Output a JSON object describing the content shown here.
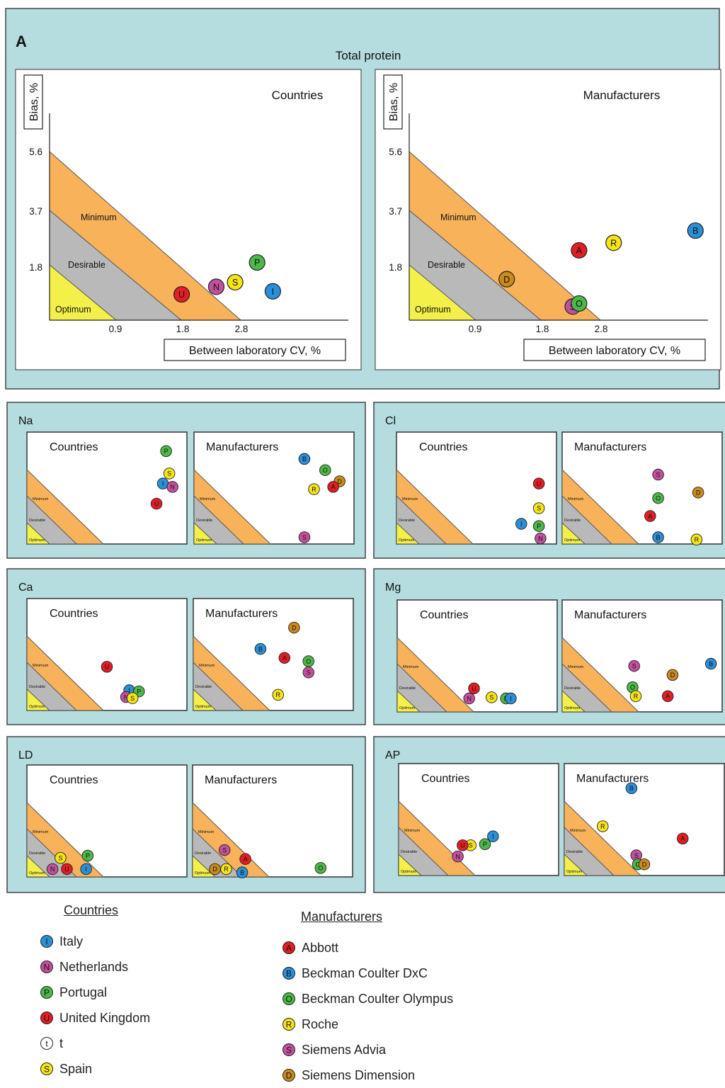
{
  "panel_a": {
    "letter": "A",
    "title": "Total protein",
    "ylabel": "Bias, %",
    "xlabel": "Between laboratory CV, %",
    "y_ticks": [
      "5.6",
      "3.7",
      "1.8"
    ],
    "x_ticks": [
      "0.9",
      "1.8",
      "2.8"
    ],
    "zones": [
      "Minimum",
      "Desirable",
      "Optimum"
    ]
  },
  "small_panels": {
    "sub_titles": [
      "Countries",
      "Manufacturers"
    ],
    "zones": [
      "Minimum",
      "Desirable",
      "Optimum"
    ]
  },
  "legend": {
    "countries_title": "Countries",
    "manufacturers_title": "Manufacturers",
    "countries": [
      {
        "code": "I",
        "name": "Italy",
        "color": "#2a8fd6"
      },
      {
        "code": "N",
        "name": "Netherlands",
        "color": "#c2509e"
      },
      {
        "code": "P",
        "name": "Portugal",
        "color": "#4db848"
      },
      {
        "code": "U",
        "name": "United Kingdom",
        "color": "#e21d24"
      },
      {
        "code": "t",
        "name": "t",
        "color": "#ffffff"
      },
      {
        "code": "S",
        "name": "Spain",
        "color": "#f5e516"
      }
    ],
    "manufacturers": [
      {
        "code": "A",
        "name": "Abbott",
        "color": "#e21d24"
      },
      {
        "code": "B",
        "name": "Beckman Coulter DxC",
        "color": "#2a8fd6"
      },
      {
        "code": "O",
        "name": "Beckman Coulter Olympus",
        "color": "#4db848"
      },
      {
        "code": "R",
        "name": "Roche",
        "color": "#f5e516"
      },
      {
        "code": "S",
        "name": "Siemens Advia",
        "color": "#c2509e"
      },
      {
        "code": "D",
        "name": "Siemens Dimension",
        "color": "#c98a1e"
      }
    ]
  },
  "colors": {
    "panel_bg": "#b5dcdf",
    "minimum_zone": "#f8b25a",
    "desirable_zone": "#b9b9b9",
    "optimum_zone": "#f4f04a"
  },
  "chart_data": [
    {
      "type": "scatter",
      "analyte": "Total protein",
      "group": "Countries",
      "xlabel": "Between laboratory CV, %",
      "ylabel": "Bias, %",
      "x_ticks": [
        0.9,
        1.8,
        2.8
      ],
      "y_ticks": [
        1.8,
        3.7,
        5.6
      ],
      "xlim": [
        0,
        5.2
      ],
      "ylim": [
        0,
        7.7
      ],
      "points": [
        {
          "label": "U",
          "x": 2.1,
          "y": 0.85
        },
        {
          "label": "N",
          "x": 2.65,
          "y": 1.1
        },
        {
          "label": "S",
          "x": 2.95,
          "y": 1.25
        },
        {
          "label": "P",
          "x": 3.3,
          "y": 1.9
        },
        {
          "label": "I",
          "x": 3.55,
          "y": 0.95
        }
      ]
    },
    {
      "type": "scatter",
      "analyte": "Total protein",
      "group": "Manufacturers",
      "xlabel": "Between laboratory CV, %",
      "ylabel": "Bias, %",
      "x_ticks": [
        0.9,
        1.8,
        2.8
      ],
      "y_ticks": [
        1.8,
        3.7,
        5.6
      ],
      "xlim": [
        0,
        5.2
      ],
      "ylim": [
        0,
        7.7
      ],
      "points": [
        {
          "label": "D",
          "x": 1.55,
          "y": 1.35
        },
        {
          "label": "S",
          "x": 2.6,
          "y": 0.45
        },
        {
          "label": "O",
          "x": 2.7,
          "y": 0.55
        },
        {
          "label": "A",
          "x": 2.7,
          "y": 2.3
        },
        {
          "label": "R",
          "x": 3.25,
          "y": 2.55
        },
        {
          "label": "B",
          "x": 4.55,
          "y": 2.95
        }
      ]
    },
    {
      "type": "scatter",
      "analyte": "Na",
      "group": "Countries",
      "points": [
        {
          "label": "P",
          "x": 0.87,
          "y": 0.83
        },
        {
          "label": "S",
          "x": 0.89,
          "y": 0.63
        },
        {
          "label": "I",
          "x": 0.85,
          "y": 0.54
        },
        {
          "label": "N",
          "x": 0.91,
          "y": 0.51
        },
        {
          "label": "U",
          "x": 0.81,
          "y": 0.36
        }
      ]
    },
    {
      "type": "scatter",
      "analyte": "Na",
      "group": "Manufacturers",
      "points": [
        {
          "label": "B",
          "x": 0.69,
          "y": 0.76
        },
        {
          "label": "O",
          "x": 0.82,
          "y": 0.66
        },
        {
          "label": "R",
          "x": 0.75,
          "y": 0.49
        },
        {
          "label": "D",
          "x": 0.91,
          "y": 0.56
        },
        {
          "label": "A",
          "x": 0.87,
          "y": 0.51
        },
        {
          "label": "S",
          "x": 0.69,
          "y": 0.06
        }
      ]
    },
    {
      "type": "scatter",
      "analyte": "Cl",
      "group": "Countries",
      "points": [
        {
          "label": "U",
          "x": 0.89,
          "y": 0.54
        },
        {
          "label": "S",
          "x": 0.89,
          "y": 0.32
        },
        {
          "label": "I",
          "x": 0.78,
          "y": 0.18
        },
        {
          "label": "P",
          "x": 0.89,
          "y": 0.16
        },
        {
          "label": "N",
          "x": 0.9,
          "y": 0.05
        }
      ]
    },
    {
      "type": "scatter",
      "analyte": "Cl",
      "group": "Manufacturers",
      "points": [
        {
          "label": "S",
          "x": 0.6,
          "y": 0.62
        },
        {
          "label": "D",
          "x": 0.85,
          "y": 0.46
        },
        {
          "label": "O",
          "x": 0.6,
          "y": 0.41
        },
        {
          "label": "A",
          "x": 0.55,
          "y": 0.25
        },
        {
          "label": "B",
          "x": 0.6,
          "y": 0.06
        },
        {
          "label": "R",
          "x": 0.84,
          "y": 0.04
        }
      ]
    },
    {
      "type": "scatter",
      "analyte": "Ca",
      "group": "Countries",
      "points": [
        {
          "label": "U",
          "x": 0.5,
          "y": 0.39
        },
        {
          "label": "I",
          "x": 0.64,
          "y": 0.18
        },
        {
          "label": "P",
          "x": 0.7,
          "y": 0.17
        },
        {
          "label": "N",
          "x": 0.62,
          "y": 0.12
        },
        {
          "label": "S",
          "x": 0.66,
          "y": 0.11
        }
      ]
    },
    {
      "type": "scatter",
      "analyte": "Ca",
      "group": "Manufacturers",
      "points": [
        {
          "label": "D",
          "x": 0.63,
          "y": 0.74
        },
        {
          "label": "B",
          "x": 0.42,
          "y": 0.55
        },
        {
          "label": "A",
          "x": 0.57,
          "y": 0.47
        },
        {
          "label": "O",
          "x": 0.72,
          "y": 0.44
        },
        {
          "label": "S",
          "x": 0.72,
          "y": 0.34
        },
        {
          "label": "R",
          "x": 0.53,
          "y": 0.14
        }
      ]
    },
    {
      "type": "scatter",
      "analyte": "Mg",
      "group": "Countries",
      "points": [
        {
          "label": "U",
          "x": 0.48,
          "y": 0.21
        },
        {
          "label": "N",
          "x": 0.45,
          "y": 0.12
        },
        {
          "label": "S",
          "x": 0.59,
          "y": 0.13
        },
        {
          "label": "P",
          "x": 0.68,
          "y": 0.12
        },
        {
          "label": "I",
          "x": 0.71,
          "y": 0.12
        }
      ]
    },
    {
      "type": "scatter",
      "analyte": "Mg",
      "group": "Manufacturers",
      "points": [
        {
          "label": "B",
          "x": 0.93,
          "y": 0.43
        },
        {
          "label": "S",
          "x": 0.45,
          "y": 0.41
        },
        {
          "label": "D",
          "x": 0.69,
          "y": 0.33
        },
        {
          "label": "O",
          "x": 0.44,
          "y": 0.22
        },
        {
          "label": "R",
          "x": 0.46,
          "y": 0.14
        },
        {
          "label": "A",
          "x": 0.66,
          "y": 0.14
        }
      ]
    },
    {
      "type": "scatter",
      "analyte": "LD",
      "group": "Countries",
      "points": [
        {
          "label": "P",
          "x": 0.38,
          "y": 0.19
        },
        {
          "label": "S",
          "x": 0.21,
          "y": 0.17
        },
        {
          "label": "N",
          "x": 0.16,
          "y": 0.07
        },
        {
          "label": "U",
          "x": 0.25,
          "y": 0.07
        },
        {
          "label": "I",
          "x": 0.37,
          "y": 0.07
        }
      ]
    },
    {
      "type": "scatter",
      "analyte": "LD",
      "group": "Manufacturers",
      "points": [
        {
          "label": "S",
          "x": 0.2,
          "y": 0.24
        },
        {
          "label": "A",
          "x": 0.33,
          "y": 0.16
        },
        {
          "label": "D",
          "x": 0.14,
          "y": 0.07
        },
        {
          "label": "R",
          "x": 0.21,
          "y": 0.07
        },
        {
          "label": "B",
          "x": 0.31,
          "y": 0.04
        },
        {
          "label": "O",
          "x": 0.8,
          "y": 0.08
        }
      ]
    },
    {
      "type": "scatter",
      "analyte": "AP",
      "group": "Countries",
      "points": [
        {
          "label": "I",
          "x": 0.59,
          "y": 0.35
        },
        {
          "label": "P",
          "x": 0.54,
          "y": 0.28
        },
        {
          "label": "S",
          "x": 0.45,
          "y": 0.27
        },
        {
          "label": "U",
          "x": 0.4,
          "y": 0.27
        },
        {
          "label": "N",
          "x": 0.37,
          "y": 0.17
        }
      ]
    },
    {
      "type": "scatter",
      "analyte": "AP",
      "group": "Manufacturers",
      "points": [
        {
          "label": "B",
          "x": 0.42,
          "y": 0.78
        },
        {
          "label": "R",
          "x": 0.24,
          "y": 0.44
        },
        {
          "label": "A",
          "x": 0.74,
          "y": 0.33
        },
        {
          "label": "S",
          "x": 0.45,
          "y": 0.18
        },
        {
          "label": "O",
          "x": 0.46,
          "y": 0.1
        },
        {
          "label": "D",
          "x": 0.5,
          "y": 0.1
        }
      ]
    }
  ]
}
